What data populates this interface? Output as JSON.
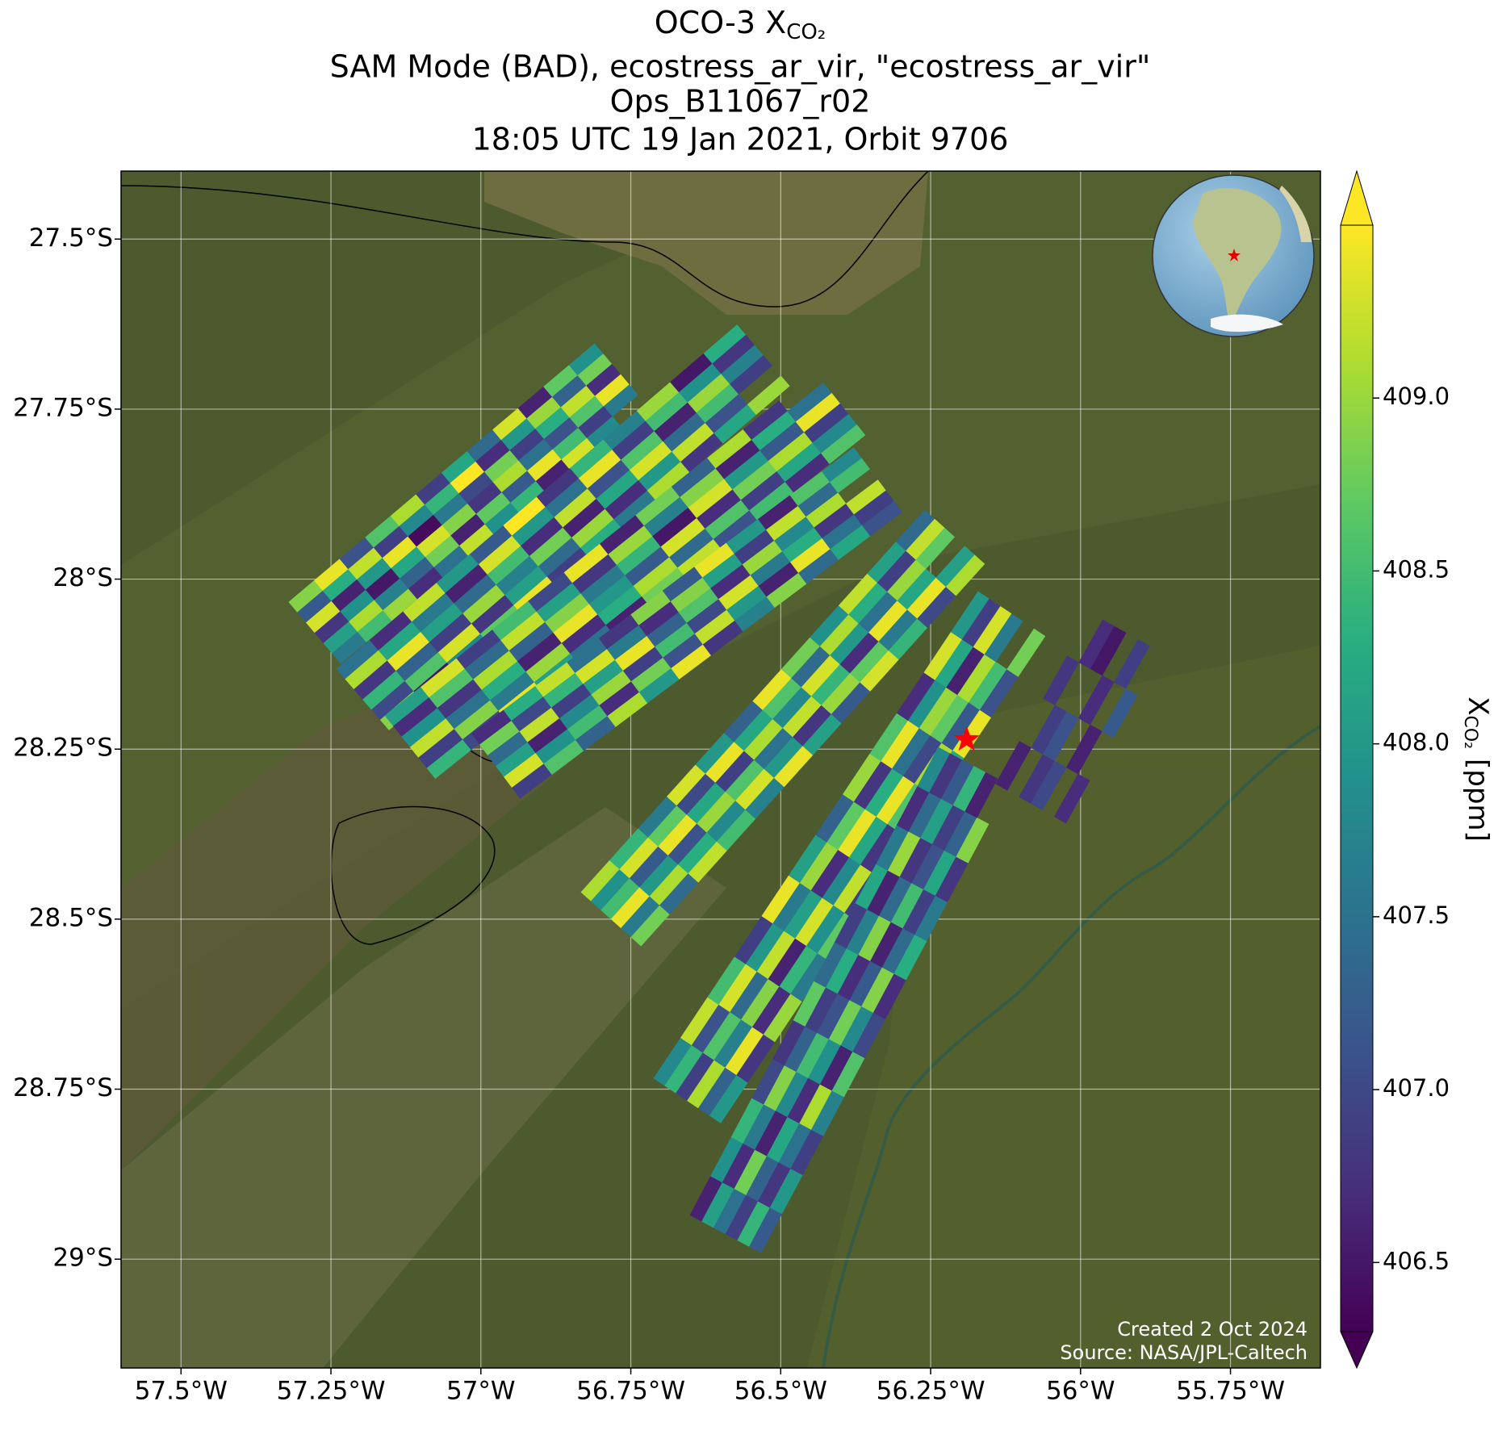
{
  "chart_data": {
    "type": "map",
    "title": [
      "OCO-3 X",
      "SAM Mode (BAD), ecostress_ar_vir, \"ecostress_ar_vir\"",
      "Ops_B11067_r02",
      "18:05 UTC 19 Jan 2021, Orbit 9706"
    ],
    "title_sub": "CO₂",
    "xlim": [
      -57.6,
      -55.6
    ],
    "ylim": [
      -29.16,
      -27.4
    ],
    "xticks": [
      {
        "value": -57.5,
        "label": "57.5°W"
      },
      {
        "value": -57.25,
        "label": "57.25°W"
      },
      {
        "value": -57,
        "label": "57°W"
      },
      {
        "value": -56.75,
        "label": "56.75°W"
      },
      {
        "value": -56.5,
        "label": "56.5°W"
      },
      {
        "value": -56.25,
        "label": "56.25°W"
      },
      {
        "value": -56,
        "label": "56°W"
      },
      {
        "value": -55.75,
        "label": "55.75°W"
      }
    ],
    "yticks": [
      {
        "value": -27.5,
        "label": "27.5°S"
      },
      {
        "value": -27.75,
        "label": "27.75°S"
      },
      {
        "value": -28,
        "label": "28°S"
      },
      {
        "value": -28.25,
        "label": "28.25°S"
      },
      {
        "value": -28.5,
        "label": "28.5°S"
      },
      {
        "value": -28.75,
        "label": "28.75°S"
      },
      {
        "value": -29,
        "label": "29°S"
      }
    ],
    "grid": true,
    "colormap": "viridis",
    "clim": [
      406.3,
      409.5
    ],
    "cticks": [
      406.5,
      {
        "value": 407,
        "label": "407.0"
      },
      407.5,
      {
        "value": 408,
        "label": "408.0"
      },
      408.5,
      {
        "value": 409,
        "label": "409.0"
      }
    ],
    "colorbar_label": {
      "main": "X",
      "sub": "CO₂",
      "unit": "[ppm]"
    },
    "target": {
      "lon": -56.19,
      "lat": -28.236
    },
    "credits": [
      "Created 2 Oct 2024",
      "Source: NASA/JPL-Caltech"
    ],
    "swaths": [
      {
        "lon": [
          -57.277,
          -56.767
        ],
        "lat": [
          -28.079,
          -27.699
        ],
        "values": [
          [
            408.9,
            407.2,
            409.3,
            406.8,
            408.1,
            407.6
          ],
          [
            409.4,
            408.3,
            406.6,
            407.9,
            409.1,
            408.5
          ],
          [
            407.1,
            409.2,
            408.0,
            406.5,
            407.7,
            409.0
          ],
          [
            408.6,
            406.9,
            409.4,
            408.2,
            407.3,
            406.7
          ],
          [
            409.1,
            407.8,
            406.4,
            409.3,
            408.8,
            407.5
          ],
          [
            406.9,
            408.4,
            407.6,
            408.9,
            406.6,
            409.2
          ],
          [
            408.2,
            409.5,
            407.0,
            406.8,
            408.7,
            407.9
          ],
          [
            407.4,
            406.7,
            408.8,
            409.1,
            407.2,
            408.4
          ],
          [
            409.3,
            408.0,
            406.9,
            407.5,
            409.4,
            406.6
          ],
          [
            406.6,
            409.0,
            408.3,
            407.1,
            408.5,
            409.3
          ],
          [
            408.7,
            407.3,
            409.2,
            408.6,
            406.9,
            407.8
          ],
          [
            407.9,
            408.8,
            406.7,
            409.4,
            407.6,
            null
          ]
        ]
      },
      {
        "lon": [
          -57.197,
          -56.529
        ],
        "lat": [
          -28.177,
          -27.671
        ],
        "values": [
          [
            407.5,
            409.1,
            406.8,
            408.4,
            407.0,
            408.9
          ],
          [
            406.7,
            408.2,
            409.4,
            407.3,
            408.6,
            406.5
          ],
          [
            409.2,
            407.6,
            408.1,
            406.9,
            409.3,
            407.8
          ],
          [
            408.0,
            406.6,
            407.4,
            409.0,
            406.8,
            408.7
          ],
          [
            407.2,
            409.3,
            408.5,
            407.7,
            408.1,
            409.4
          ],
          [
            409.5,
            408.0,
            406.7,
            408.8,
            407.4,
            406.9
          ],
          [
            406.8,
            407.5,
            409.2,
            406.6,
            409.0,
            408.3
          ],
          [
            408.4,
            409.4,
            407.1,
            408.2,
            406.7,
            407.6
          ],
          [
            407.7,
            406.9,
            408.6,
            409.3,
            408.0,
            409.1
          ],
          [
            409.0,
            408.5,
            406.6,
            407.4,
            409.2,
            406.8
          ],
          [
            406.5,
            407.9,
            409.0,
            408.5,
            407.1,
            408.2
          ],
          [
            408.3,
            406.8,
            407.7,
            406.9,
            null,
            409.0
          ]
        ]
      },
      {
        "lon": [
          -57.118,
          -56.401
        ],
        "lat": [
          -28.247,
          -27.742
        ],
        "values": [
          [
            408.1,
            406.7,
            407.9,
            409.2,
            406.9,
            408.4
          ],
          [
            409.3,
            408.6,
            406.8,
            407.5,
            408.9,
            407.0
          ],
          [
            406.9,
            407.4,
            409.1,
            408.3,
            407.6,
            409.4
          ],
          [
            408.5,
            409.2,
            407.3,
            406.6,
            409.0,
            408.1
          ],
          [
            407.0,
            408.1,
            408.9,
            409.4,
            406.7,
            407.5
          ],
          [
            409.4,
            406.8,
            407.6,
            408.0,
            408.3,
            406.6
          ],
          [
            406.6,
            409.0,
            408.4,
            407.2,
            409.1,
            408.8
          ],
          [
            408.8,
            407.7,
            406.5,
            409.3,
            407.4,
            409.2
          ],
          [
            407.3,
            408.9,
            409.3,
            406.7,
            408.6,
            407.1
          ],
          [
            409.1,
            406.6,
            408.0,
            408.8,
            406.9,
            408.5
          ],
          [
            406.8,
            408.3,
            407.2,
            409.1,
            408.2,
            406.7
          ],
          [
            null,
            407.5,
            409.4,
            406.9,
            407.8,
            408.6
          ]
        ]
      },
      {
        "lon": [
          -56.975,
          -56.338
        ],
        "lat": [
          -28.275,
          -27.854
        ],
        "values": [
          [
            406.7,
            408.8,
            407.4,
            408.1,
            409.3,
            406.9
          ],
          [
            408.3,
            407.0,
            409.2,
            406.6,
            407.9,
            408.6
          ],
          [
            409.2,
            408.4,
            406.9,
            407.8,
            408.5,
            407.3
          ],
          [
            407.5,
            409.3,
            408.1,
            409.0,
            406.7,
            409.1
          ],
          [
            406.8,
            407.6,
            409.4,
            406.9,
            408.8,
            408.0
          ],
          [
            408.9,
            406.7,
            407.3,
            408.5,
            407.1,
            409.4
          ],
          [
            407.2,
            408.9,
            408.6,
            407.0,
            409.2,
            406.8
          ],
          [
            409.4,
            408.1,
            406.7,
            409.3,
            408.0,
            407.7
          ],
          [
            408.0,
            406.9,
            409.0,
            407.6,
            406.6,
            408.9
          ],
          [
            406.6,
            409.2,
            407.8,
            408.3,
            409.4,
            407.4
          ],
          [
            408.6,
            407.4,
            409.1,
            406.8,
            407.5,
            408.2
          ],
          [
            407.8,
            408.5,
            null,
            409.2,
            406.9,
            407.1
          ]
        ]
      },
      {
        "lon": [
          -56.783,
          -56.21
        ],
        "lat": [
          -28.5,
          -27.938
        ],
        "values": [
          [
            409.1,
            407.9,
            408.5,
            409.4,
            407.6,
            408.8
          ],
          [
            408.4,
            409.3,
            407.2,
            408.0,
            409.1,
            407.4
          ],
          [
            407.6,
            408.7,
            409.4,
            407.1,
            408.3,
            409.2
          ],
          [
            409.3,
            407.0,
            408.2,
            409.0,
            407.8,
            408.5
          ],
          [
            408.0,
            409.4,
            406.9,
            408.6,
            409.3,
            407.7
          ],
          [
            407.3,
            408.2,
            409.1,
            407.5,
            408.0,
            409.4
          ],
          [
            409.4,
            408.6,
            407.8,
            409.2,
            406.8,
            408.1
          ],
          [
            408.8,
            407.4,
            409.3,
            408.4,
            409.0,
            407.2
          ],
          [
            407.9,
            409.1,
            408.0,
            406.7,
            408.7,
            409.3
          ],
          [
            409.2,
            408.3,
            407.5,
            409.4,
            407.6,
            408.4
          ],
          [
            408.1,
            406.9,
            409.0,
            408.2,
            409.4,
            407.0
          ],
          [
            407.4,
            409.2,
            408.7,
            null,
            408.1,
            409.1
          ]
        ]
      },
      {
        "lon": [
          -56.656,
          -56.115
        ],
        "lat": [
          -28.767,
          -28.051
        ],
        "values": [
          [
            407.8,
            408.4,
            406.9,
            409.1,
            407.3,
            408.0
          ],
          [
            409.2,
            407.1,
            408.6,
            407.7,
            409.4,
            406.8
          ],
          [
            408.5,
            409.3,
            407.4,
            408.9,
            406.7,
            409.0
          ],
          [
            406.9,
            408.0,
            409.2,
            406.6,
            408.4,
            407.6
          ],
          [
            409.4,
            407.6,
            408.1,
            409.3,
            407.9,
            408.7
          ],
          [
            408.1,
            409.0,
            406.7,
            407.8,
            409.2,
            406.9
          ],
          [
            407.3,
            408.7,
            409.4,
            408.2,
            406.8,
            409.3
          ],
          [
            409.0,
            406.8,
            408.3,
            409.4,
            408.6,
            407.4
          ],
          [
            408.6,
            409.4,
            407.5,
            407.0,
            409.1,
            408.2
          ],
          [
            406.7,
            407.9,
            409.0,
            408.7,
            407.2,
            409.4
          ],
          [
            409.3,
            408.2,
            406.6,
            409.1,
            408.5,
            407.1
          ],
          [
            408.0,
            406.9,
            409.3,
            407.6,
            null,
            408.8
          ]
        ]
      },
      {
        "lon": [
          -56.592,
          -56.178
        ],
        "lat": [
          -28.963,
          -28.275
        ],
        "values": [
          [
            406.6,
            408.1,
            407.5,
            406.9,
            408.4,
            407.2
          ],
          [
            407.9,
            406.7,
            408.8,
            407.3,
            406.8,
            408.0
          ],
          [
            408.4,
            407.6,
            406.6,
            408.2,
            407.5,
            406.9
          ],
          [
            407.0,
            408.9,
            407.8,
            406.7,
            409.1,
            407.7
          ],
          [
            406.8,
            407.3,
            408.5,
            407.9,
            406.6,
            408.6
          ],
          [
            408.7,
            406.9,
            407.1,
            408.8,
            407.8,
            407.0
          ],
          [
            407.4,
            408.3,
            406.7,
            407.2,
            408.9,
            406.7
          ],
          [
            406.9,
            407.7,
            408.9,
            406.6,
            407.4,
            408.3
          ],
          [
            408.2,
            406.6,
            407.4,
            408.5,
            406.9,
            407.6
          ],
          [
            407.6,
            409.0,
            406.8,
            407.1,
            408.2,
            406.8
          ],
          [
            406.7,
            407.4,
            408.1,
            406.9,
            407.3,
            408.9
          ],
          [
            407.8,
            406.8,
            407.2,
            408.4,
            406.6,
            null
          ]
        ]
      },
      {
        "lon": [
          -56.083,
          -55.924
        ],
        "lat": [
          -28.33,
          -28.079
        ],
        "values": [
          [
            406.6,
            null,
            406.8,
            407.0,
            null,
            406.7
          ],
          [
            null,
            406.9,
            407.1,
            null,
            406.6,
            null
          ],
          [
            406.8,
            null,
            null,
            406.7,
            null,
            407.2
          ],
          [
            null,
            406.7,
            406.5,
            null,
            406.9,
            null
          ]
        ]
      }
    ]
  }
}
